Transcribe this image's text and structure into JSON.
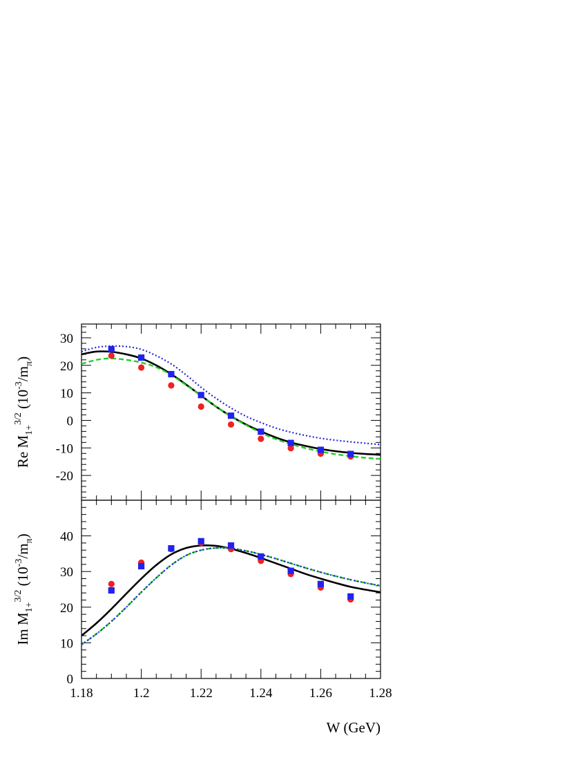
{
  "chart_data": [
    {
      "type": "line",
      "panel": "top",
      "ylabel": {
        "prefix": "Re M",
        "sub": "1+",
        "sup": "3/2",
        "unit_open": " (10",
        "unit_sup": "-3",
        "unit_mid": "/m",
        "unit_sub": "π",
        "unit_close": ")"
      },
      "xlim": [
        1.18,
        1.28
      ],
      "ylim": [
        -29,
        35
      ],
      "y_ticks": [
        -20,
        -10,
        0,
        10,
        20,
        30
      ],
      "y_tick_labels": [
        "-20",
        "-10",
        "0",
        "10",
        "20",
        "30"
      ],
      "x_ticks": [
        1.18,
        1.2,
        1.22,
        1.24,
        1.26,
        1.28
      ],
      "grid": false,
      "series": [
        {
          "kind": "line",
          "style": "solid",
          "color": "#000000",
          "x": [
            1.18,
            1.185,
            1.19,
            1.195,
            1.2,
            1.205,
            1.21,
            1.215,
            1.22,
            1.225,
            1.23,
            1.235,
            1.24,
            1.245,
            1.25,
            1.255,
            1.26,
            1.265,
            1.27,
            1.275,
            1.28
          ],
          "y": [
            24.0,
            25.0,
            24.9,
            24.0,
            22.5,
            20.0,
            16.8,
            13.0,
            9.0,
            5.0,
            1.5,
            -1.5,
            -4.0,
            -6.2,
            -8.0,
            -9.3,
            -10.4,
            -11.2,
            -11.8,
            -12.2,
            -12.5
          ]
        },
        {
          "kind": "line",
          "style": "dashed",
          "color": "#22cc22",
          "x": [
            1.18,
            1.185,
            1.19,
            1.195,
            1.2,
            1.205,
            1.21,
            1.215,
            1.22,
            1.225,
            1.23,
            1.235,
            1.24,
            1.245,
            1.25,
            1.255,
            1.26,
            1.265,
            1.27,
            1.275,
            1.28
          ],
          "y": [
            20.5,
            22.0,
            22.5,
            22.0,
            21.0,
            19.3,
            16.5,
            12.8,
            9.0,
            5.0,
            1.4,
            -1.7,
            -4.5,
            -6.8,
            -8.6,
            -10.1,
            -11.3,
            -12.3,
            -13.0,
            -13.6,
            -14.0
          ]
        },
        {
          "kind": "line",
          "style": "dotted",
          "color": "#2222dd",
          "x": [
            1.18,
            1.185,
            1.19,
            1.195,
            1.2,
            1.205,
            1.21,
            1.215,
            1.22,
            1.225,
            1.23,
            1.235,
            1.24,
            1.245,
            1.25,
            1.255,
            1.26,
            1.265,
            1.27,
            1.275,
            1.28
          ],
          "y": [
            25.0,
            26.5,
            27.0,
            26.8,
            25.8,
            23.5,
            20.5,
            16.5,
            12.0,
            8.0,
            4.5,
            1.5,
            -0.8,
            -2.8,
            -4.3,
            -5.5,
            -6.5,
            -7.2,
            -7.8,
            -8.3,
            -8.8
          ]
        },
        {
          "kind": "points",
          "marker": "circle",
          "color": "#ee2222",
          "x": [
            1.19,
            1.2,
            1.21,
            1.22,
            1.23,
            1.24,
            1.25,
            1.26,
            1.27
          ],
          "y": [
            23.5,
            19.2,
            12.7,
            5.0,
            -1.5,
            -6.7,
            -10.1,
            -12.1,
            -13.1
          ]
        },
        {
          "kind": "points",
          "marker": "square",
          "color": "#2222ee",
          "x": [
            1.19,
            1.2,
            1.21,
            1.22,
            1.23,
            1.24,
            1.25,
            1.26,
            1.27
          ],
          "y": [
            25.9,
            22.8,
            16.8,
            9.2,
            1.7,
            -4.1,
            -8.2,
            -10.7,
            -12.2
          ]
        }
      ]
    },
    {
      "type": "line",
      "panel": "bottom",
      "ylabel": {
        "prefix": "Im M",
        "sub": "1+",
        "sup": "3/2",
        "unit_open": " (10",
        "unit_sup": "-3",
        "unit_mid": "/m",
        "unit_sub": "π",
        "unit_close": ")"
      },
      "xlabel": "W (GeV)",
      "xlim": [
        1.18,
        1.28
      ],
      "ylim": [
        0,
        50
      ],
      "y_ticks": [
        0,
        10,
        20,
        30,
        40
      ],
      "y_tick_labels": [
        "0",
        "10",
        "20",
        "30",
        "40"
      ],
      "x_ticks": [
        1.18,
        1.2,
        1.22,
        1.24,
        1.26,
        1.28
      ],
      "x_tick_labels": [
        "1.18",
        "1.2",
        "1.22",
        "1.24",
        "1.26",
        "1.28"
      ],
      "grid": false,
      "series": [
        {
          "kind": "line",
          "style": "solid",
          "color": "#000000",
          "x": [
            1.18,
            1.185,
            1.19,
            1.195,
            1.2,
            1.205,
            1.21,
            1.215,
            1.22,
            1.225,
            1.23,
            1.235,
            1.24,
            1.245,
            1.25,
            1.255,
            1.26,
            1.265,
            1.27,
            1.275,
            1.28
          ],
          "y": [
            12.0,
            15.5,
            19.5,
            23.8,
            28.0,
            31.8,
            34.8,
            36.6,
            37.3,
            37.2,
            36.4,
            35.2,
            33.8,
            32.3,
            30.8,
            29.3,
            28.0,
            26.8,
            25.7,
            24.9,
            24.2
          ]
        },
        {
          "kind": "line",
          "style": "dashed",
          "color": "#22cc22",
          "x": [
            1.18,
            1.185,
            1.19,
            1.195,
            1.2,
            1.205,
            1.21,
            1.215,
            1.22,
            1.225,
            1.23,
            1.235,
            1.24,
            1.245,
            1.25,
            1.255,
            1.26,
            1.265,
            1.27,
            1.275,
            1.28
          ],
          "y": [
            9.5,
            12.5,
            16.0,
            20.0,
            24.2,
            28.2,
            31.8,
            34.5,
            36.0,
            36.6,
            36.5,
            35.8,
            34.8,
            33.6,
            32.3,
            31.0,
            29.8,
            28.7,
            27.7,
            26.8,
            26.0
          ]
        },
        {
          "kind": "line",
          "style": "dotted",
          "color": "#2222dd",
          "x": [
            1.18,
            1.185,
            1.19,
            1.195,
            1.2,
            1.205,
            1.21,
            1.215,
            1.22,
            1.225,
            1.23,
            1.235,
            1.24,
            1.245,
            1.25,
            1.255,
            1.26,
            1.265,
            1.27,
            1.275,
            1.28
          ],
          "y": [
            9.5,
            12.5,
            16.0,
            20.0,
            24.2,
            28.2,
            31.8,
            34.5,
            36.0,
            36.6,
            36.5,
            35.8,
            34.8,
            33.6,
            32.3,
            31.0,
            29.8,
            28.7,
            27.7,
            26.8,
            26.0
          ]
        },
        {
          "kind": "points",
          "marker": "circle",
          "color": "#ee2222",
          "x": [
            1.19,
            1.2,
            1.21,
            1.22,
            1.23,
            1.24,
            1.25,
            1.26,
            1.27
          ],
          "y": [
            26.5,
            32.5,
            36.3,
            38.0,
            36.3,
            33.0,
            29.3,
            25.5,
            22.2
          ]
        },
        {
          "kind": "points",
          "marker": "square",
          "color": "#2222ee",
          "x": [
            1.19,
            1.2,
            1.21,
            1.22,
            1.23,
            1.24,
            1.25,
            1.26,
            1.27
          ],
          "y": [
            24.7,
            31.5,
            36.5,
            38.5,
            37.3,
            34.2,
            30.2,
            26.5,
            23.0
          ]
        }
      ]
    }
  ]
}
